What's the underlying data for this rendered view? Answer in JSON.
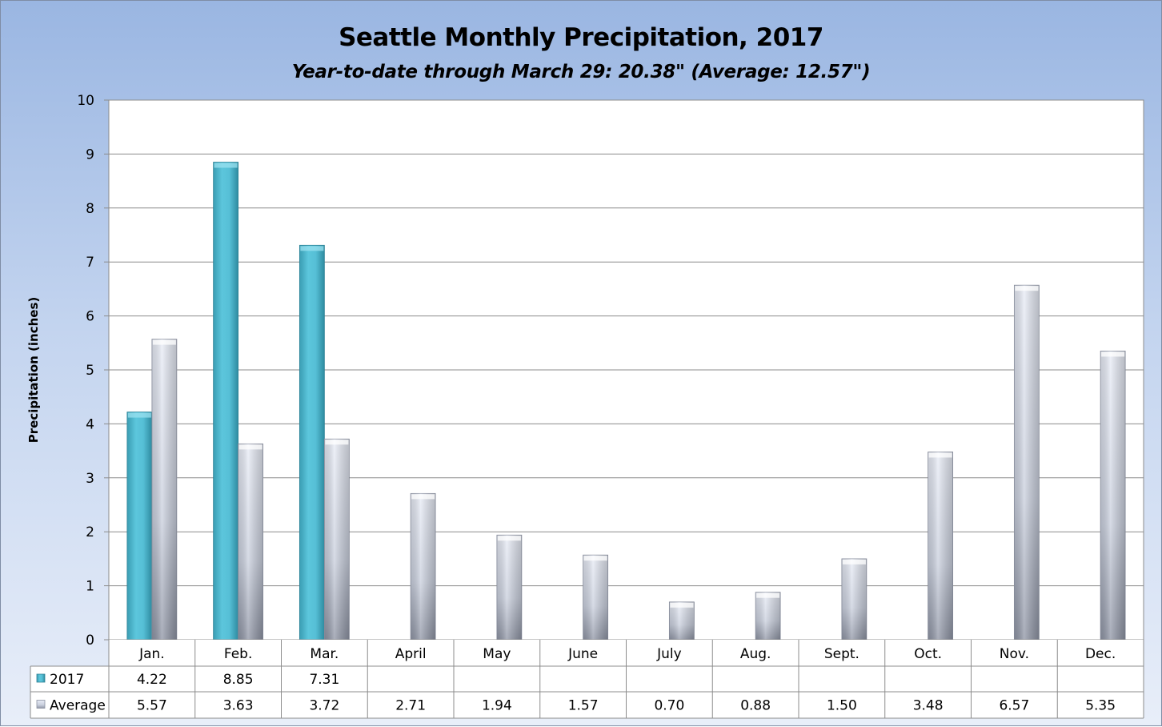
{
  "chart_data": {
    "type": "bar",
    "title": "Seattle Monthly Precipitation, 2017",
    "subtitle": "Year-to-date through March 29: 20.38\" (Average: 12.57\")",
    "xlabel": "",
    "ylabel": "Precipitation (inches)",
    "ylim": [
      0,
      10
    ],
    "yticks": [
      "0",
      "1",
      "2",
      "3",
      "4",
      "5",
      "6",
      "7",
      "8",
      "9",
      "10"
    ],
    "grid": true,
    "legend": "data-table",
    "categories": [
      "Jan.",
      "Feb.",
      "Mar.",
      "April",
      "May",
      "June",
      "July",
      "Aug.",
      "Sept.",
      "Oct.",
      "Nov.",
      "Dec."
    ],
    "series": [
      {
        "name": "2017",
        "color": "#4bb5cc",
        "values": [
          4.22,
          8.85,
          7.31,
          null,
          null,
          null,
          null,
          null,
          null,
          null,
          null,
          null
        ],
        "labels": [
          "4.22",
          "8.85",
          "7.31",
          "",
          "",
          "",
          "",
          "",
          "",
          "",
          "",
          ""
        ]
      },
      {
        "name": "Average",
        "color": "#c8cfe0",
        "values": [
          5.57,
          3.63,
          3.72,
          2.71,
          1.94,
          1.57,
          0.7,
          0.88,
          1.5,
          3.48,
          6.57,
          5.35
        ],
        "labels": [
          "5.57",
          "3.63",
          "3.72",
          "2.71",
          "1.94",
          "1.57",
          "0.70",
          "0.88",
          "1.50",
          "3.48",
          "6.57",
          "5.35"
        ]
      }
    ]
  }
}
